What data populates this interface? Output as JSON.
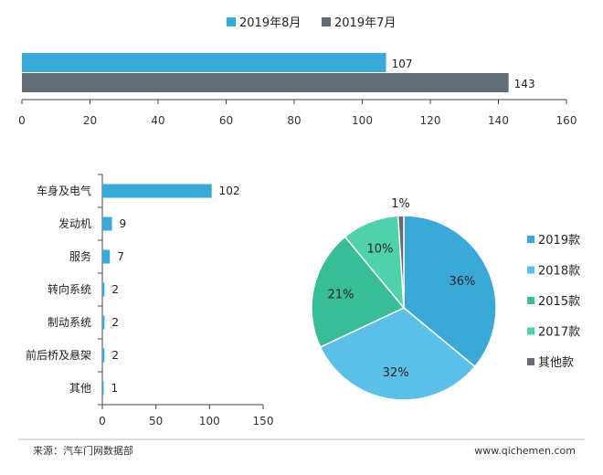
{
  "chart_data": [
    {
      "type": "bar",
      "orientation": "horizontal",
      "series": [
        {
          "name": "2019年8月",
          "values": [
            107
          ],
          "color": "#3aa9d8"
        },
        {
          "name": "2019年7月",
          "values": [
            143
          ],
          "color": "#646c78"
        }
      ],
      "xlim": [
        0,
        160
      ],
      "xticks": [
        "0",
        "20",
        "40",
        "60",
        "80",
        "100",
        "120",
        "140",
        "160"
      ],
      "legend_position": "top-center",
      "grid": false
    },
    {
      "type": "bar",
      "orientation": "horizontal",
      "categories": [
        "车身及电气",
        "发动机",
        "服务",
        "转向系统",
        "制动系统",
        "前后桥及悬架",
        "其他"
      ],
      "values": [
        102,
        9,
        7,
        2,
        2,
        2,
        1
      ],
      "color": "#3aa9d8",
      "xlim": [
        0,
        150
      ],
      "xticks": [
        "0",
        "50",
        "100",
        "150"
      ],
      "grid": false
    },
    {
      "type": "pie",
      "slices": [
        {
          "label": "2019款",
          "value": 36,
          "display": "36%",
          "color": "#3aa9d8"
        },
        {
          "label": "2018款",
          "value": 32,
          "display": "32%",
          "color": "#5bbfe8"
        },
        {
          "label": "2015款",
          "value": 21,
          "display": "21%",
          "color": "#38bd96"
        },
        {
          "label": "2017款",
          "value": 10,
          "display": "10%",
          "color": "#4fd1ac"
        },
        {
          "label": "其他款",
          "value": 1,
          "display": "1%",
          "color": "#646c78"
        }
      ],
      "legend_position": "right"
    }
  ],
  "footer": {
    "source": "来源：汽车门网数据部",
    "website": "www.qichemen.com"
  }
}
